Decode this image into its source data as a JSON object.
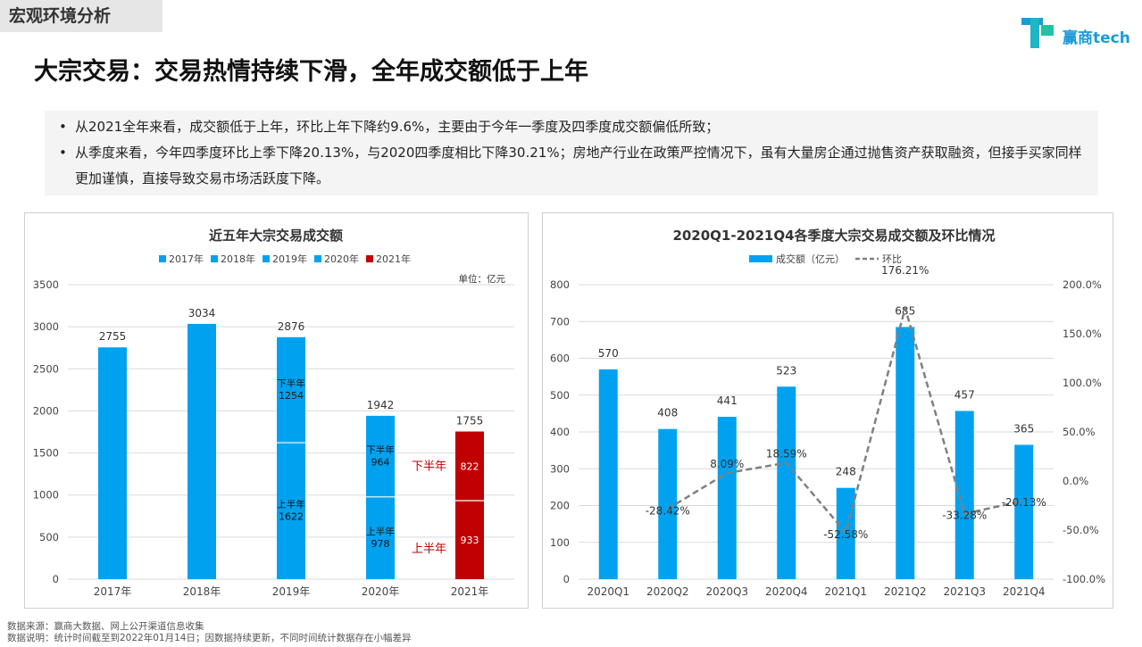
{
  "header": {
    "section_tag": "宏观环境分析",
    "brand": "赢商tech"
  },
  "title": "大宗交易：交易热情持续下滑，全年成交额低于上年",
  "bullets": [
    "从2021全年来看，成交额低于上年，环比上年下降约9.6%，主要由于今年一季度及四季度成交额偏低所致；",
    "从季度来看，今年四季度环比上季下降20.13%，与2020四季度相比下降30.21%；房地产行业在政策严控情况下，虽有大量房企通过抛售资产获取融资，但接手买家同样更加谨慎，直接导致交易市场活跃度下降。"
  ],
  "footer": {
    "source": "数据来源：赢商大数据、网上公开渠道信息收集",
    "note": "数据说明：统计时间截至到2022年01月14日；因数据持续更新，不同时间统计数据存在小幅差异"
  },
  "colors": {
    "blue": "#00A2F0",
    "red": "#C00000",
    "line": "#808080",
    "grid": "#d9d9d9"
  },
  "chart_data": [
    {
      "type": "bar",
      "title": "近五年大宗交易成交额",
      "unit_label": "单位：亿元",
      "categories": [
        "2017年",
        "2018年",
        "2019年",
        "2020年",
        "2021年"
      ],
      "values": [
        2755,
        3034,
        2876,
        1942,
        1755
      ],
      "legend": [
        "2017年",
        "2018年",
        "2019年",
        "2020年",
        "2021年"
      ],
      "legend_position": "top",
      "ylim": [
        0,
        3500
      ],
      "yticks": [
        0,
        500,
        1000,
        1500,
        2000,
        2500,
        3000,
        3500
      ],
      "grid": true,
      "stacked_segments": [
        {
          "category": "2019年",
          "first_half": 1622,
          "second_half": 1254,
          "first_label": "上半年",
          "second_label": "下半年"
        },
        {
          "category": "2020年",
          "first_half": 978,
          "second_half": 964,
          "first_label": "上半年",
          "second_label": "下半年"
        },
        {
          "category": "2021年",
          "first_half": 933,
          "second_half": 822
        }
      ],
      "side_labels": {
        "second_half": "下半年",
        "first_half": "上半年"
      }
    },
    {
      "type": "bar+line",
      "title": "2020Q1-2021Q4各季度大宗交易成交额及环比情况",
      "categories": [
        "2020Q1",
        "2020Q2",
        "2020Q3",
        "2020Q4",
        "2021Q1",
        "2021Q2",
        "2021Q3",
        "2021Q4"
      ],
      "series": [
        {
          "name": "成交额（亿元）",
          "type": "bar",
          "axis": "left",
          "values": [
            570,
            408,
            441,
            523,
            248,
            685,
            457,
            365
          ]
        },
        {
          "name": "环比",
          "type": "line",
          "axis": "right",
          "values": [
            null,
            -28.42,
            8.09,
            18.59,
            -52.58,
            176.21,
            -33.28,
            -20.13
          ],
          "labels": [
            "",
            "-28.42%",
            "8.09%",
            "18.59%",
            "-52.58%",
            "176.21%",
            "-33.28%",
            "-20.13%"
          ]
        }
      ],
      "legend_position": "top",
      "ylim_left": [
        0,
        800
      ],
      "yticks_left": [
        0,
        100,
        200,
        300,
        400,
        500,
        600,
        700,
        800
      ],
      "ylim_right": [
        -100,
        200
      ],
      "yticks_right": [
        "-100.0%",
        "-50.0%",
        "0.0%",
        "50.0%",
        "100.0%",
        "150.0%",
        "200.0%"
      ],
      "grid": true
    }
  ]
}
